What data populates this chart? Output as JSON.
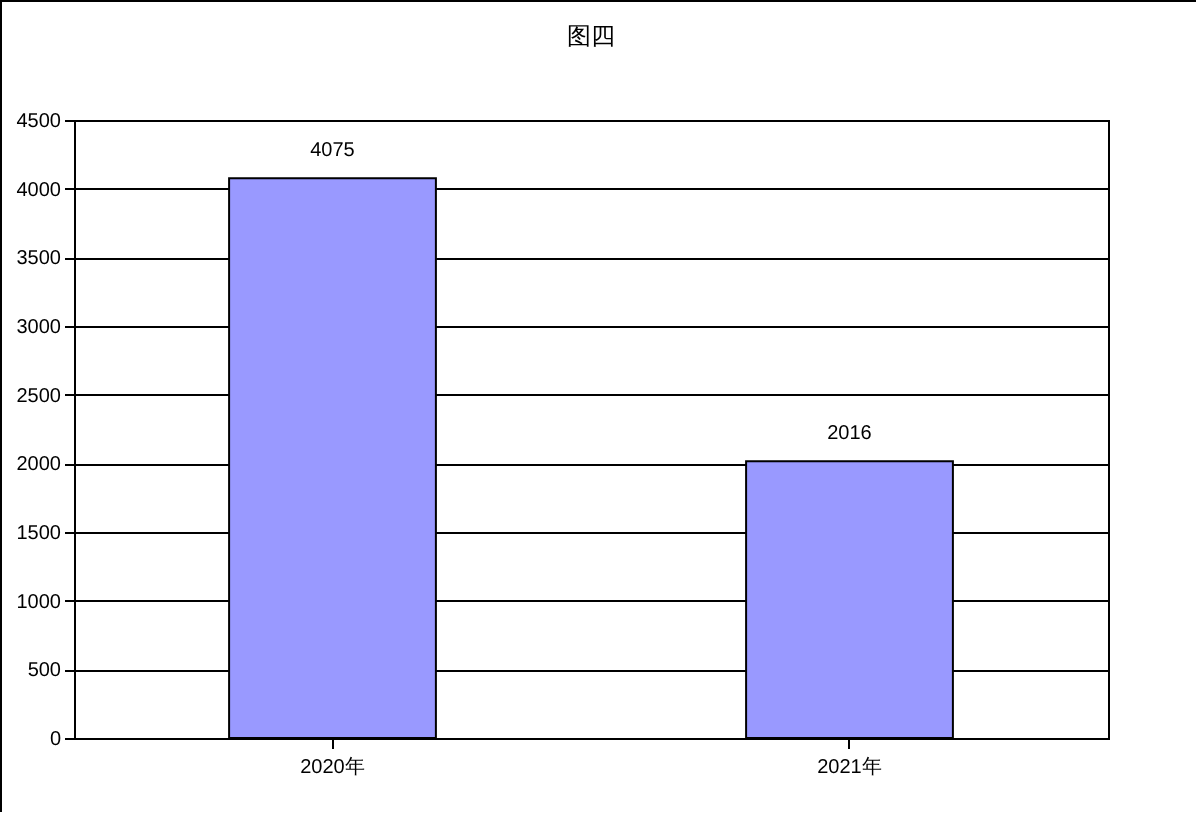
{
  "chart_data": {
    "type": "bar",
    "title": "图四",
    "categories": [
      "2020年",
      "2021年"
    ],
    "values": [
      4075,
      2016
    ],
    "color": "#9999ff",
    "ylim": [
      0,
      4500
    ],
    "yticks": [
      0,
      500,
      1000,
      1500,
      2000,
      2500,
      3000,
      3500,
      4000,
      4500
    ],
    "grid": "y",
    "data_labels": true
  }
}
